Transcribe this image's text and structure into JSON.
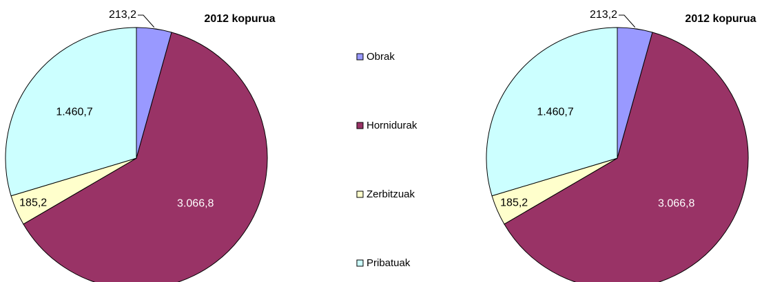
{
  "chart_data": [
    {
      "type": "pie",
      "title": "2012 kopurua",
      "categories": [
        "Obrak",
        "Hornidurak",
        "Zerbitzuak",
        "Pribatuak"
      ],
      "values": [
        213.2,
        3066.8,
        185.2,
        1460.7
      ],
      "value_labels": [
        "213,2",
        "3.066,8",
        "185,2",
        "1.460,7"
      ],
      "colors": [
        "#9999ff",
        "#993366",
        "#ffffcc",
        "#ccffff"
      ],
      "legend": "right"
    },
    {
      "type": "pie",
      "title": "2012 kopurua",
      "categories": [
        "Obrak",
        "Hornidurak",
        "Zerbitzuak",
        "Pribatuak"
      ],
      "values": [
        213.2,
        3066.8,
        185.2,
        1460.7
      ],
      "value_labels": [
        "213,2",
        "3.066,8",
        "185,2",
        "1.460,7"
      ],
      "colors": [
        "#9999ff",
        "#993366",
        "#ffffcc",
        "#ccffff"
      ]
    }
  ]
}
